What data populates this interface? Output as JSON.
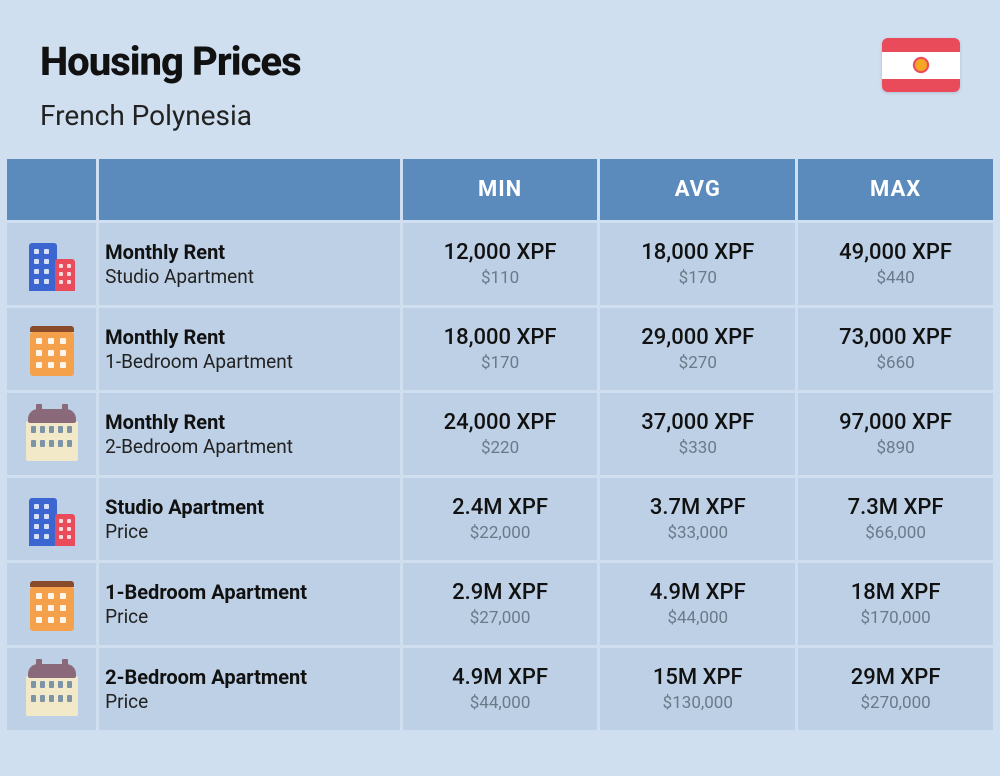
{
  "header": {
    "title": "Housing Prices",
    "subtitle": "French Polynesia"
  },
  "columns": {
    "min": "MIN",
    "avg": "AVG",
    "max": "MAX"
  },
  "rows": [
    {
      "icon": "tall-short",
      "title": "Monthly Rent",
      "sub": "Studio Apartment",
      "min": {
        "main": "12,000 XPF",
        "sub": "$110"
      },
      "avg": {
        "main": "18,000 XPF",
        "sub": "$170"
      },
      "max": {
        "main": "49,000 XPF",
        "sub": "$440"
      }
    },
    {
      "icon": "orange",
      "title": "Monthly Rent",
      "sub": "1-Bedroom Apartment",
      "min": {
        "main": "18,000 XPF",
        "sub": "$170"
      },
      "avg": {
        "main": "29,000 XPF",
        "sub": "$270"
      },
      "max": {
        "main": "73,000 XPF",
        "sub": "$660"
      }
    },
    {
      "icon": "cream",
      "title": "Monthly Rent",
      "sub": "2-Bedroom Apartment",
      "min": {
        "main": "24,000 XPF",
        "sub": "$220"
      },
      "avg": {
        "main": "37,000 XPF",
        "sub": "$330"
      },
      "max": {
        "main": "97,000 XPF",
        "sub": "$890"
      }
    },
    {
      "icon": "tall-short",
      "title": "Studio Apartment",
      "sub": "Price",
      "min": {
        "main": "2.4M XPF",
        "sub": "$22,000"
      },
      "avg": {
        "main": "3.7M XPF",
        "sub": "$33,000"
      },
      "max": {
        "main": "7.3M XPF",
        "sub": "$66,000"
      }
    },
    {
      "icon": "orange",
      "title": "1-Bedroom Apartment",
      "sub": "Price",
      "min": {
        "main": "2.9M XPF",
        "sub": "$27,000"
      },
      "avg": {
        "main": "4.9M XPF",
        "sub": "$44,000"
      },
      "max": {
        "main": "18M XPF",
        "sub": "$170,000"
      }
    },
    {
      "icon": "cream",
      "title": "2-Bedroom Apartment",
      "sub": "Price",
      "min": {
        "main": "4.9M XPF",
        "sub": "$44,000"
      },
      "avg": {
        "main": "15M XPF",
        "sub": "$130,000"
      },
      "max": {
        "main": "29M XPF",
        "sub": "$270,000"
      }
    }
  ],
  "colors": {
    "page_bg": "#cfdff0",
    "header_bg": "#5b8bbd",
    "cell_bg": "#bdd0e5",
    "text_primary": "#111",
    "text_secondary": "#6b7a8a",
    "flag_red": "#e94b5a",
    "flag_white": "#ffffff"
  }
}
